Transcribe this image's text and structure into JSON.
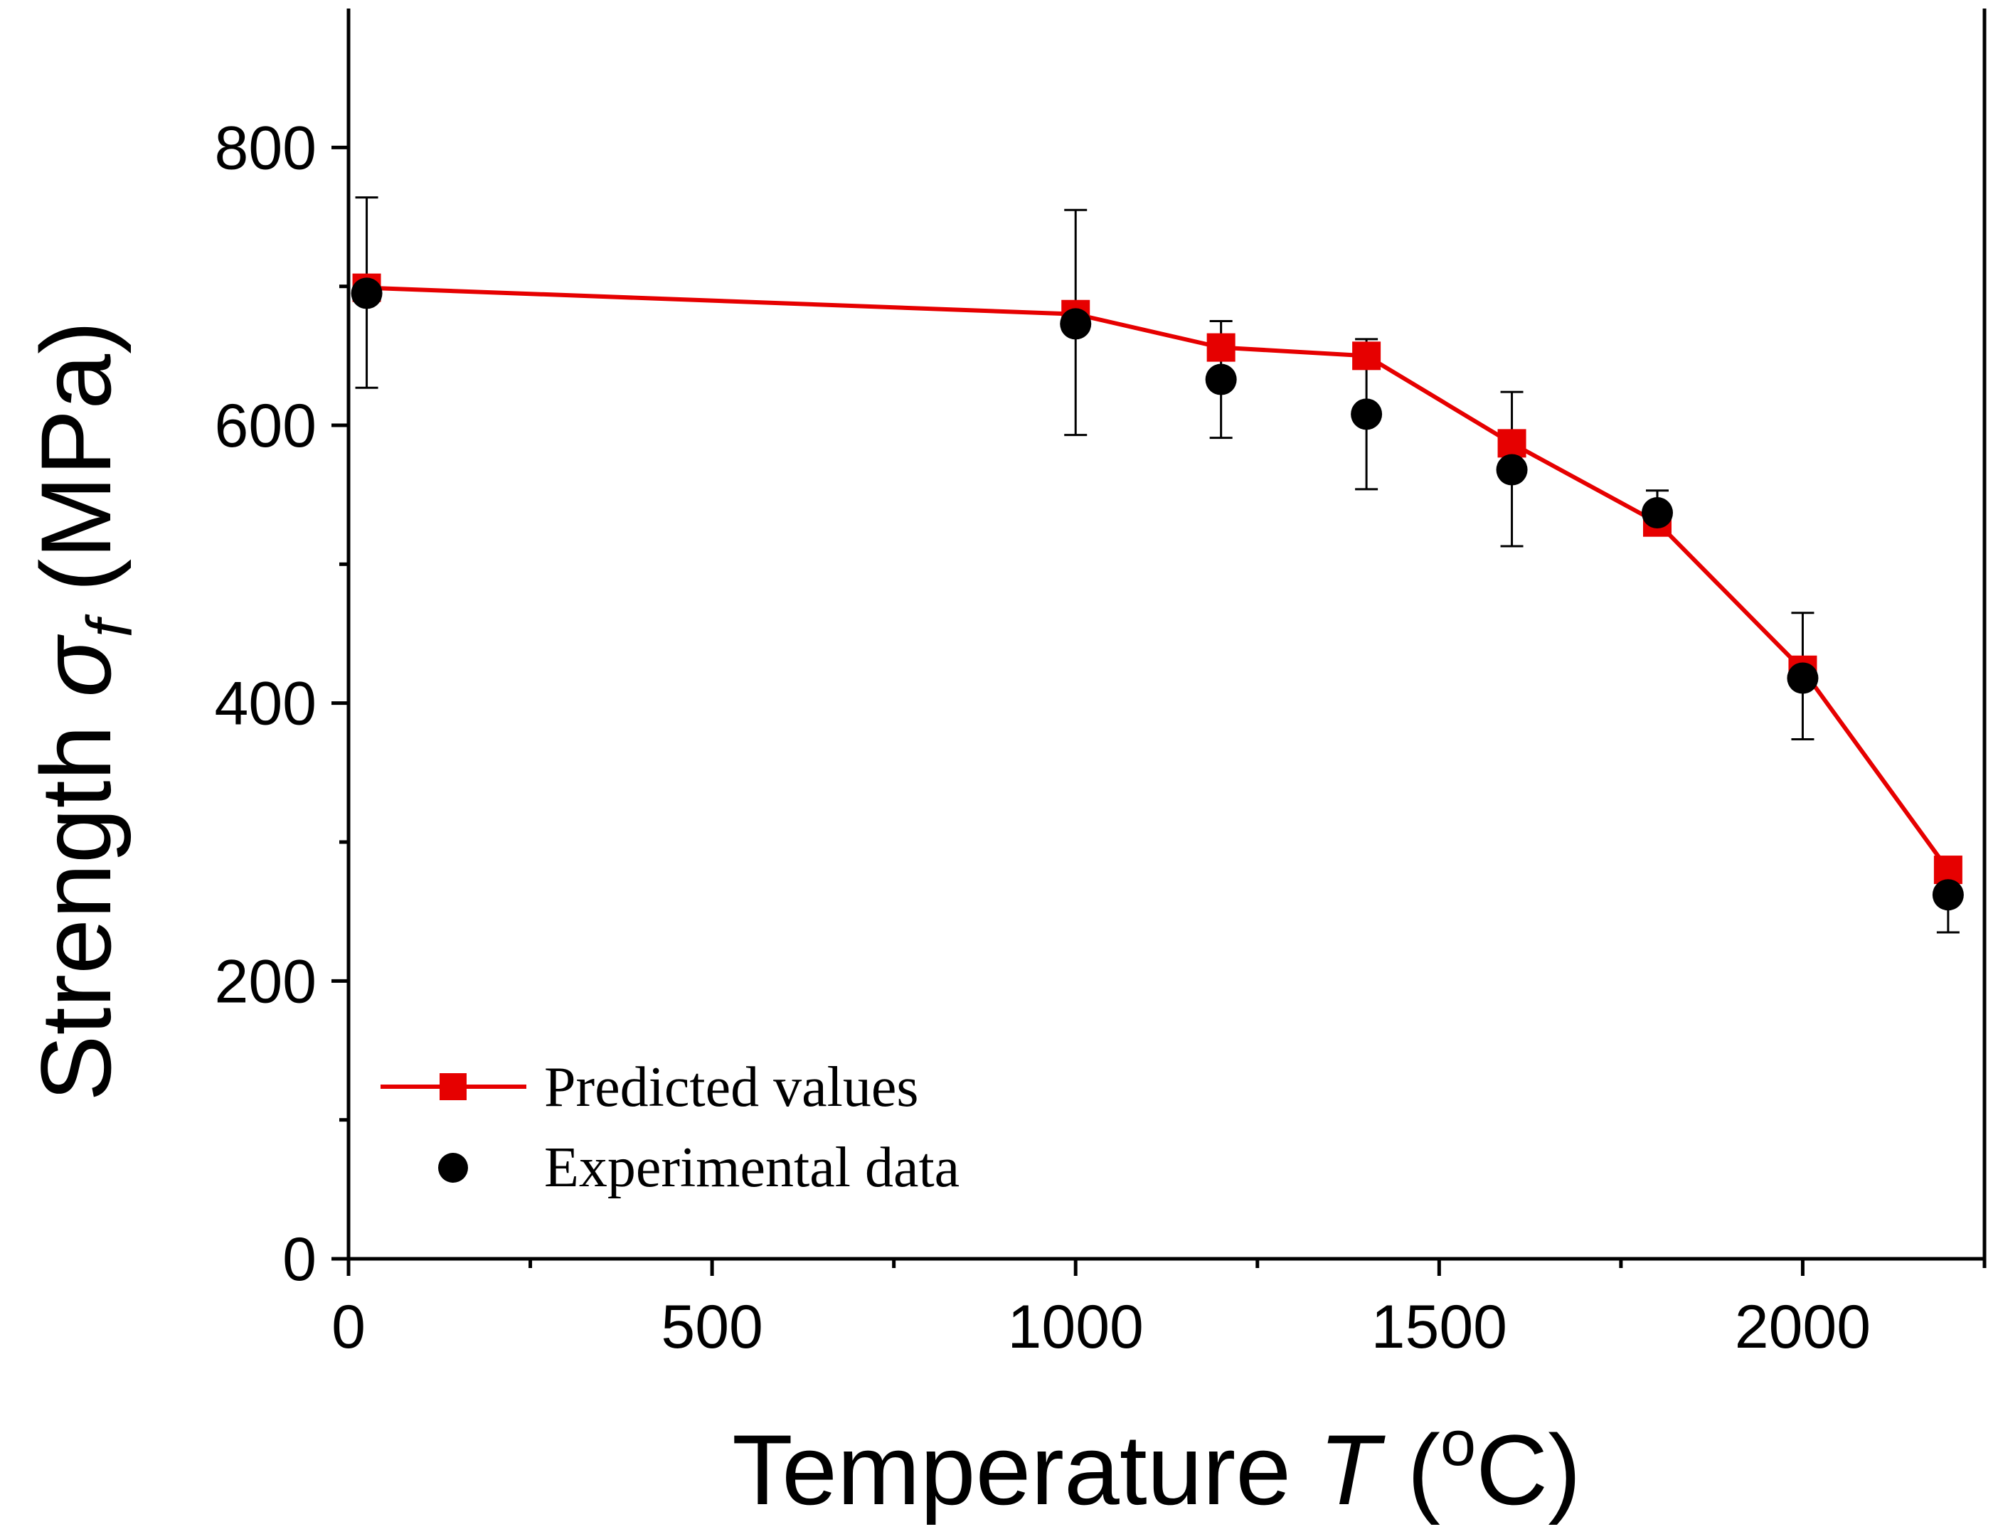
{
  "chart_data": {
    "type": "line",
    "title": "",
    "xlabel": {
      "main": "Temperature ",
      "symbol": "T",
      "unit_open": " (",
      "unit_sup": "o",
      "unit_close": "C)"
    },
    "ylabel": {
      "main": "Strength ",
      "symbol": "σ",
      "subscript": "f",
      "unit": " (MPa)"
    },
    "xlim": [
      0,
      2250
    ],
    "ylim": [
      0,
      900
    ],
    "x_major_ticks": [
      0,
      500,
      1000,
      1500,
      2000
    ],
    "x_minor_ticks": [
      250,
      750,
      1250,
      1750,
      2250
    ],
    "y_major_ticks": [
      0,
      200,
      400,
      600,
      800
    ],
    "y_minor_ticks": [
      100,
      300,
      500,
      700
    ],
    "x_tick_labels": [
      "0",
      "500",
      "1000",
      "1500",
      "2000"
    ],
    "y_tick_labels": [
      "0",
      "200",
      "400",
      "600",
      "800"
    ],
    "grid": false,
    "legend_position": "bottom-left",
    "series": [
      {
        "name": "Predicted values",
        "style": "line-square",
        "color": "#e60000",
        "x": [
          25,
          1000,
          1200,
          1400,
          1600,
          1800,
          2000,
          2200
        ],
        "values": [
          699,
          680,
          656,
          650,
          587,
          530,
          424,
          280
        ]
      },
      {
        "name": "Experimental data",
        "style": "circle-errorbar",
        "color": "#000000",
        "x": [
          25,
          1000,
          1200,
          1400,
          1600,
          1800,
          2000,
          2200
        ],
        "values": [
          695,
          673,
          633,
          608,
          568,
          537,
          418,
          262
        ],
        "err_low": [
          627,
          593,
          591,
          554,
          513,
          523,
          374,
          235
        ],
        "err_high": [
          764,
          755,
          675,
          662,
          624,
          553,
          465,
          288
        ]
      }
    ]
  }
}
